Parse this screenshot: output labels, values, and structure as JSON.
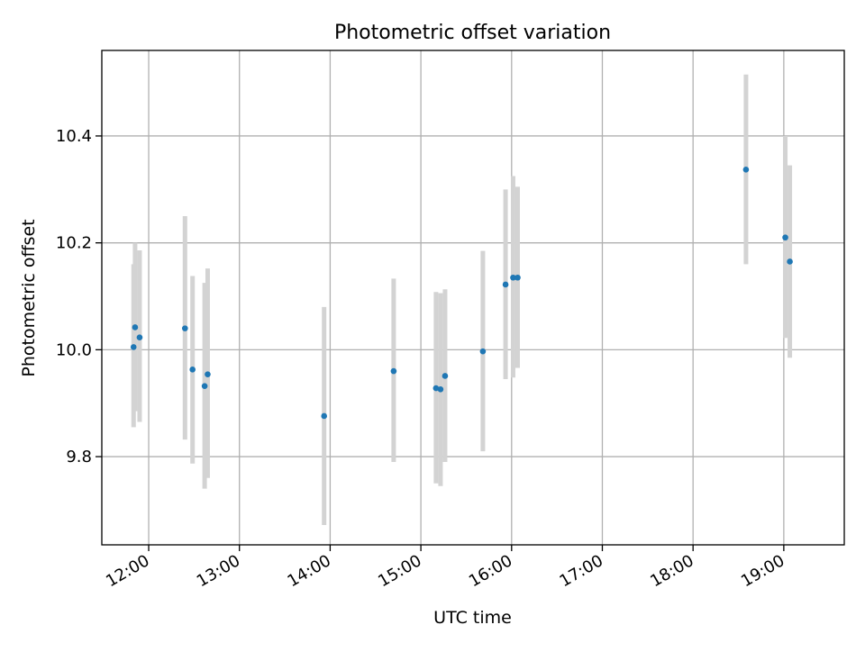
{
  "chart_data": {
    "type": "scatter",
    "title": "Photometric offset variation",
    "xlabel": "UTC time",
    "ylabel": "Photometric offset",
    "x_ticks": [
      "12:00",
      "13:00",
      "14:00",
      "15:00",
      "16:00",
      "17:00",
      "18:00",
      "19:00"
    ],
    "y_ticks": [
      "9.8",
      "10.0",
      "10.2",
      "10.4"
    ],
    "xlim": [
      "11:29",
      "19:40"
    ],
    "ylim": [
      9.635,
      10.56
    ],
    "grid": true,
    "points": [
      {
        "x": "11:50",
        "y": 10.005,
        "lo": 9.855,
        "hi": 10.16
      },
      {
        "x": "11:51",
        "y": 10.042,
        "lo": 9.885,
        "hi": 10.2
      },
      {
        "x": "11:54",
        "y": 10.023,
        "lo": 9.865,
        "hi": 10.186
      },
      {
        "x": "12:24",
        "y": 10.04,
        "lo": 9.832,
        "hi": 10.25
      },
      {
        "x": "12:29",
        "y": 9.963,
        "lo": 9.787,
        "hi": 10.138
      },
      {
        "x": "12:37",
        "y": 9.932,
        "lo": 9.74,
        "hi": 10.125
      },
      {
        "x": "12:39",
        "y": 9.954,
        "lo": 9.76,
        "hi": 10.152
      },
      {
        "x": "13:56",
        "y": 9.876,
        "lo": 9.672,
        "hi": 10.08
      },
      {
        "x": "14:42",
        "y": 9.96,
        "lo": 9.79,
        "hi": 10.133
      },
      {
        "x": "15:10",
        "y": 9.928,
        "lo": 9.75,
        "hi": 10.108
      },
      {
        "x": "15:13",
        "y": 9.926,
        "lo": 9.745,
        "hi": 10.106
      },
      {
        "x": "15:16",
        "y": 9.951,
        "lo": 9.79,
        "hi": 10.113
      },
      {
        "x": "15:41",
        "y": 9.997,
        "lo": 9.81,
        "hi": 10.185
      },
      {
        "x": "15:56",
        "y": 10.122,
        "lo": 9.945,
        "hi": 10.3
      },
      {
        "x": "16:01",
        "y": 10.135,
        "lo": 9.948,
        "hi": 10.325
      },
      {
        "x": "16:04",
        "y": 10.135,
        "lo": 9.966,
        "hi": 10.305
      },
      {
        "x": "18:35",
        "y": 10.337,
        "lo": 10.16,
        "hi": 10.515
      },
      {
        "x": "19:01",
        "y": 10.21,
        "lo": 10.022,
        "hi": 10.4
      },
      {
        "x": "19:04",
        "y": 10.165,
        "lo": 9.985,
        "hi": 10.345
      }
    ],
    "colors": {
      "point": "#1f77b4",
      "errorbar": "#d3d3d3",
      "grid": "#b0b0b0",
      "axes": "#000000"
    }
  }
}
